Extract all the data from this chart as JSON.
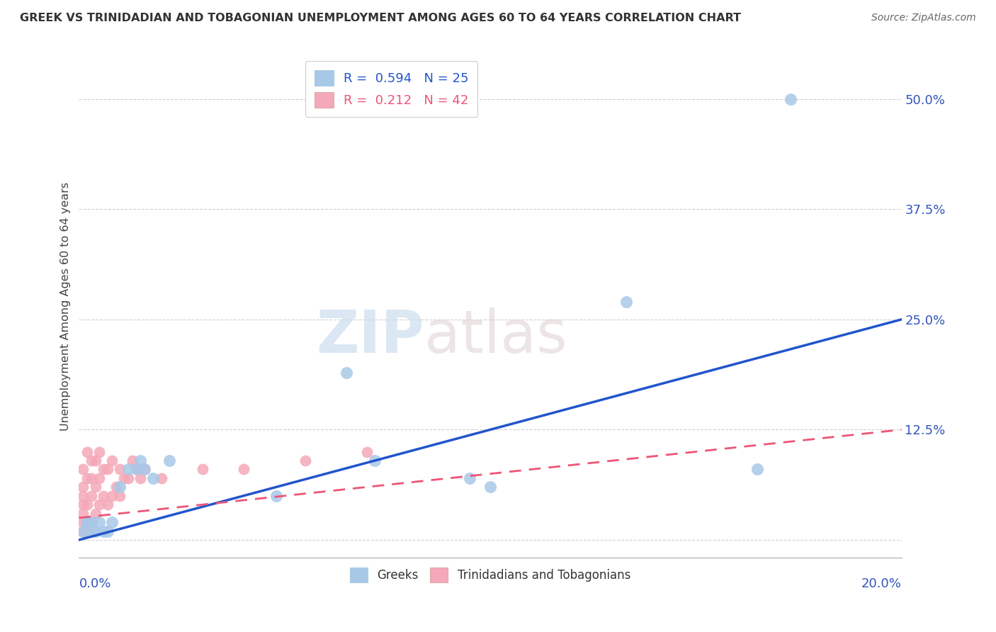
{
  "title": "GREEK VS TRINIDADIAN AND TOBAGONIAN UNEMPLOYMENT AMONG AGES 60 TO 64 YEARS CORRELATION CHART",
  "source": "Source: ZipAtlas.com",
  "ylabel": "Unemployment Among Ages 60 to 64 years",
  "xlim": [
    0.0,
    0.2
  ],
  "ylim": [
    -0.02,
    0.55
  ],
  "yticks": [
    0.0,
    0.125,
    0.25,
    0.375,
    0.5
  ],
  "ytick_labels": [
    "",
    "12.5%",
    "25.0%",
    "37.5%",
    "50.0%"
  ],
  "xtick_labels": [
    "0.0%",
    "20.0%"
  ],
  "watermark_zip": "ZIP",
  "watermark_atlas": "atlas",
  "legend_greek_R": "0.594",
  "legend_greek_N": "25",
  "legend_tt_R": "0.212",
  "legend_tt_N": "42",
  "blue_scatter_color": "#A8C8E8",
  "pink_scatter_color": "#F4A8B8",
  "blue_line_color": "#2255CC",
  "pink_line_color": "#EE5577",
  "background_color": "#FFFFFF",
  "grid_color": "#CCCCCC",
  "greek_x": [
    0.001,
    0.002,
    0.002,
    0.003,
    0.003,
    0.004,
    0.005,
    0.006,
    0.007,
    0.008,
    0.01,
    0.012,
    0.014,
    0.015,
    0.016,
    0.018,
    0.022,
    0.048,
    0.065,
    0.072,
    0.095,
    0.1,
    0.133,
    0.165,
    0.173
  ],
  "greek_y": [
    0.01,
    0.02,
    0.02,
    0.01,
    0.02,
    0.01,
    0.02,
    0.01,
    0.01,
    0.02,
    0.06,
    0.08,
    0.08,
    0.09,
    0.08,
    0.07,
    0.09,
    0.05,
    0.19,
    0.09,
    0.07,
    0.06,
    0.27,
    0.08,
    0.5
  ],
  "tt_x": [
    0.001,
    0.001,
    0.001,
    0.001,
    0.001,
    0.001,
    0.001,
    0.002,
    0.002,
    0.002,
    0.002,
    0.002,
    0.003,
    0.003,
    0.003,
    0.003,
    0.004,
    0.004,
    0.004,
    0.005,
    0.005,
    0.005,
    0.006,
    0.006,
    0.007,
    0.007,
    0.008,
    0.008,
    0.009,
    0.01,
    0.01,
    0.011,
    0.012,
    0.013,
    0.014,
    0.015,
    0.016,
    0.02,
    0.03,
    0.04,
    0.055,
    0.07
  ],
  "tt_y": [
    0.01,
    0.02,
    0.03,
    0.04,
    0.05,
    0.06,
    0.08,
    0.01,
    0.02,
    0.04,
    0.07,
    0.1,
    0.02,
    0.05,
    0.07,
    0.09,
    0.03,
    0.06,
    0.09,
    0.04,
    0.07,
    0.1,
    0.05,
    0.08,
    0.04,
    0.08,
    0.05,
    0.09,
    0.06,
    0.05,
    0.08,
    0.07,
    0.07,
    0.09,
    0.08,
    0.07,
    0.08,
    0.07,
    0.08,
    0.08,
    0.09,
    0.1
  ]
}
